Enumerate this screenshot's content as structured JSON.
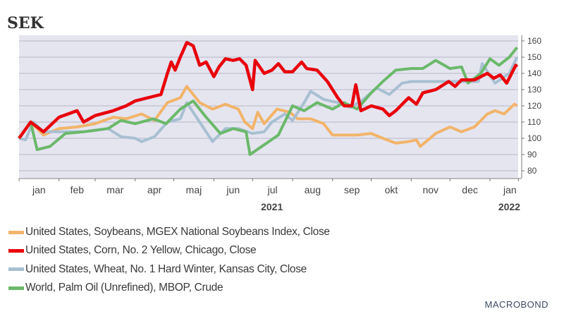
{
  "chart_data": {
    "type": "line",
    "title": "SEK",
    "xlabel": "",
    "ylabel": "",
    "ylim": [
      75,
      165
    ],
    "yticks": [
      80,
      90,
      100,
      110,
      120,
      130,
      140,
      150,
      160
    ],
    "y_axis_side": "right",
    "grid": true,
    "x_unit": "days since 2021-01-01",
    "month_ticks": [
      0,
      31,
      59,
      90,
      120,
      151,
      181,
      212,
      243,
      273,
      304,
      334,
      365
    ],
    "month_labels": [
      "jan",
      "feb",
      "mar",
      "apr",
      "maj",
      "jun",
      "jul",
      "aug",
      "sep",
      "okt",
      "nov",
      "dec",
      "jan"
    ],
    "year_labels": [
      {
        "label": "2021",
        "center_day": 196
      },
      {
        "label": "2022",
        "center_day": 380
      }
    ],
    "legend_position": "bottom",
    "series": [
      {
        "name": "United States, Soybeans, MGEX National Soybeans Index, Close",
        "color": "#F2B46A",
        "points": [
          [
            0,
            100
          ],
          [
            9,
            110
          ],
          [
            19,
            102
          ],
          [
            31,
            106
          ],
          [
            45,
            107
          ],
          [
            59,
            109
          ],
          [
            73,
            113
          ],
          [
            83,
            112
          ],
          [
            95,
            115
          ],
          [
            105,
            111
          ],
          [
            115,
            122
          ],
          [
            125,
            125
          ],
          [
            130,
            132
          ],
          [
            140,
            122
          ],
          [
            150,
            118
          ],
          [
            160,
            121
          ],
          [
            170,
            118
          ],
          [
            175,
            110
          ],
          [
            181,
            106
          ],
          [
            185,
            116
          ],
          [
            190,
            109
          ],
          [
            200,
            118
          ],
          [
            210,
            116
          ],
          [
            216,
            112
          ],
          [
            226,
            112
          ],
          [
            236,
            109
          ],
          [
            243,
            102
          ],
          [
            252,
            102
          ],
          [
            262,
            102
          ],
          [
            273,
            103
          ],
          [
            282,
            100
          ],
          [
            292,
            97
          ],
          [
            302,
            98
          ],
          [
            308,
            99
          ],
          [
            311,
            95
          ],
          [
            323,
            103
          ],
          [
            334,
            107
          ],
          [
            343,
            104
          ],
          [
            353,
            107
          ],
          [
            363,
            115
          ],
          [
            369,
            117
          ],
          [
            376,
            115
          ],
          [
            384,
            121
          ],
          [
            386,
            120
          ]
        ]
      },
      {
        "name": "United States, Corn, No. 2 Yellow, Chicago, Close",
        "color": "#E8000B",
        "points": [
          [
            0,
            100
          ],
          [
            9,
            110
          ],
          [
            19,
            104
          ],
          [
            31,
            113
          ],
          [
            45,
            117
          ],
          [
            50,
            110
          ],
          [
            59,
            114
          ],
          [
            73,
            117
          ],
          [
            83,
            120
          ],
          [
            90,
            123
          ],
          [
            100,
            125
          ],
          [
            110,
            127
          ],
          [
            115,
            140
          ],
          [
            118,
            147
          ],
          [
            121,
            142
          ],
          [
            125,
            150
          ],
          [
            130,
            159
          ],
          [
            135,
            157
          ],
          [
            140,
            145
          ],
          [
            145,
            147
          ],
          [
            151,
            138
          ],
          [
            155,
            144
          ],
          [
            160,
            149
          ],
          [
            166,
            148
          ],
          [
            171,
            149
          ],
          [
            176,
            145
          ],
          [
            181,
            130
          ],
          [
            183,
            148
          ],
          [
            190,
            140
          ],
          [
            196,
            142
          ],
          [
            201,
            146
          ],
          [
            206,
            141
          ],
          [
            212,
            141
          ],
          [
            219,
            147
          ],
          [
            223,
            143
          ],
          [
            231,
            142
          ],
          [
            239,
            135
          ],
          [
            247,
            125
          ],
          [
            252,
            120
          ],
          [
            258,
            120
          ],
          [
            261,
            133
          ],
          [
            265,
            117
          ],
          [
            273,
            120
          ],
          [
            282,
            118
          ],
          [
            287,
            114
          ],
          [
            292,
            117
          ],
          [
            302,
            125
          ],
          [
            308,
            121
          ],
          [
            313,
            128
          ],
          [
            323,
            130
          ],
          [
            333,
            135
          ],
          [
            338,
            132
          ],
          [
            343,
            136
          ],
          [
            353,
            136
          ],
          [
            363,
            140
          ],
          [
            368,
            137
          ],
          [
            373,
            139
          ],
          [
            378,
            134
          ],
          [
            385,
            145
          ],
          [
            386,
            144
          ]
        ]
      },
      {
        "name": "United States, Wheat, No. 1 Hard Winter, Kansas City, Close",
        "color": "#A8C0D2",
        "points": [
          [
            0,
            100
          ],
          [
            5,
            99
          ],
          [
            11,
            110
          ],
          [
            19,
            104
          ],
          [
            31,
            104
          ],
          [
            50,
            104
          ],
          [
            69,
            106
          ],
          [
            79,
            101
          ],
          [
            90,
            100
          ],
          [
            95,
            98
          ],
          [
            105,
            101
          ],
          [
            115,
            110
          ],
          [
            125,
            112
          ],
          [
            130,
            122
          ],
          [
            140,
            110
          ],
          [
            150,
            98
          ],
          [
            160,
            106
          ],
          [
            170,
            106
          ],
          [
            181,
            103
          ],
          [
            190,
            104
          ],
          [
            196,
            110
          ],
          [
            206,
            115
          ],
          [
            212,
            111
          ],
          [
            221,
            122
          ],
          [
            226,
            129
          ],
          [
            236,
            124
          ],
          [
            247,
            122
          ],
          [
            257,
            119
          ],
          [
            267,
            124
          ],
          [
            277,
            131
          ],
          [
            287,
            127
          ],
          [
            297,
            134
          ],
          [
            304,
            135
          ],
          [
            320,
            135
          ],
          [
            340,
            135
          ],
          [
            356,
            135
          ],
          [
            359,
            146
          ],
          [
            369,
            134
          ],
          [
            380,
            140
          ],
          [
            386,
            150
          ]
        ]
      },
      {
        "name": "World, Palm Oil (Unrefined), MBOP, Crude",
        "color": "#6BB96A",
        "points": [
          [
            0,
            100
          ],
          [
            9,
            110
          ],
          [
            14,
            93
          ],
          [
            24,
            95
          ],
          [
            36,
            103
          ],
          [
            50,
            104
          ],
          [
            69,
            106
          ],
          [
            79,
            111
          ],
          [
            90,
            109
          ],
          [
            104,
            112
          ],
          [
            114,
            109
          ],
          [
            125,
            118
          ],
          [
            135,
            123
          ],
          [
            145,
            113
          ],
          [
            156,
            103
          ],
          [
            166,
            106
          ],
          [
            176,
            104
          ],
          [
            179,
            90
          ],
          [
            190,
            96
          ],
          [
            201,
            102
          ],
          [
            212,
            120
          ],
          [
            221,
            117
          ],
          [
            231,
            122
          ],
          [
            243,
            118
          ],
          [
            252,
            122
          ],
          [
            262,
            118
          ],
          [
            273,
            128
          ],
          [
            282,
            135
          ],
          [
            292,
            142
          ],
          [
            304,
            143
          ],
          [
            313,
            143
          ],
          [
            323,
            148
          ],
          [
            334,
            143
          ],
          [
            343,
            144
          ],
          [
            348,
            134
          ],
          [
            358,
            140
          ],
          [
            365,
            149
          ],
          [
            372,
            145
          ],
          [
            380,
            150
          ],
          [
            386,
            156
          ]
        ]
      }
    ]
  },
  "brand": "MACROBOND"
}
